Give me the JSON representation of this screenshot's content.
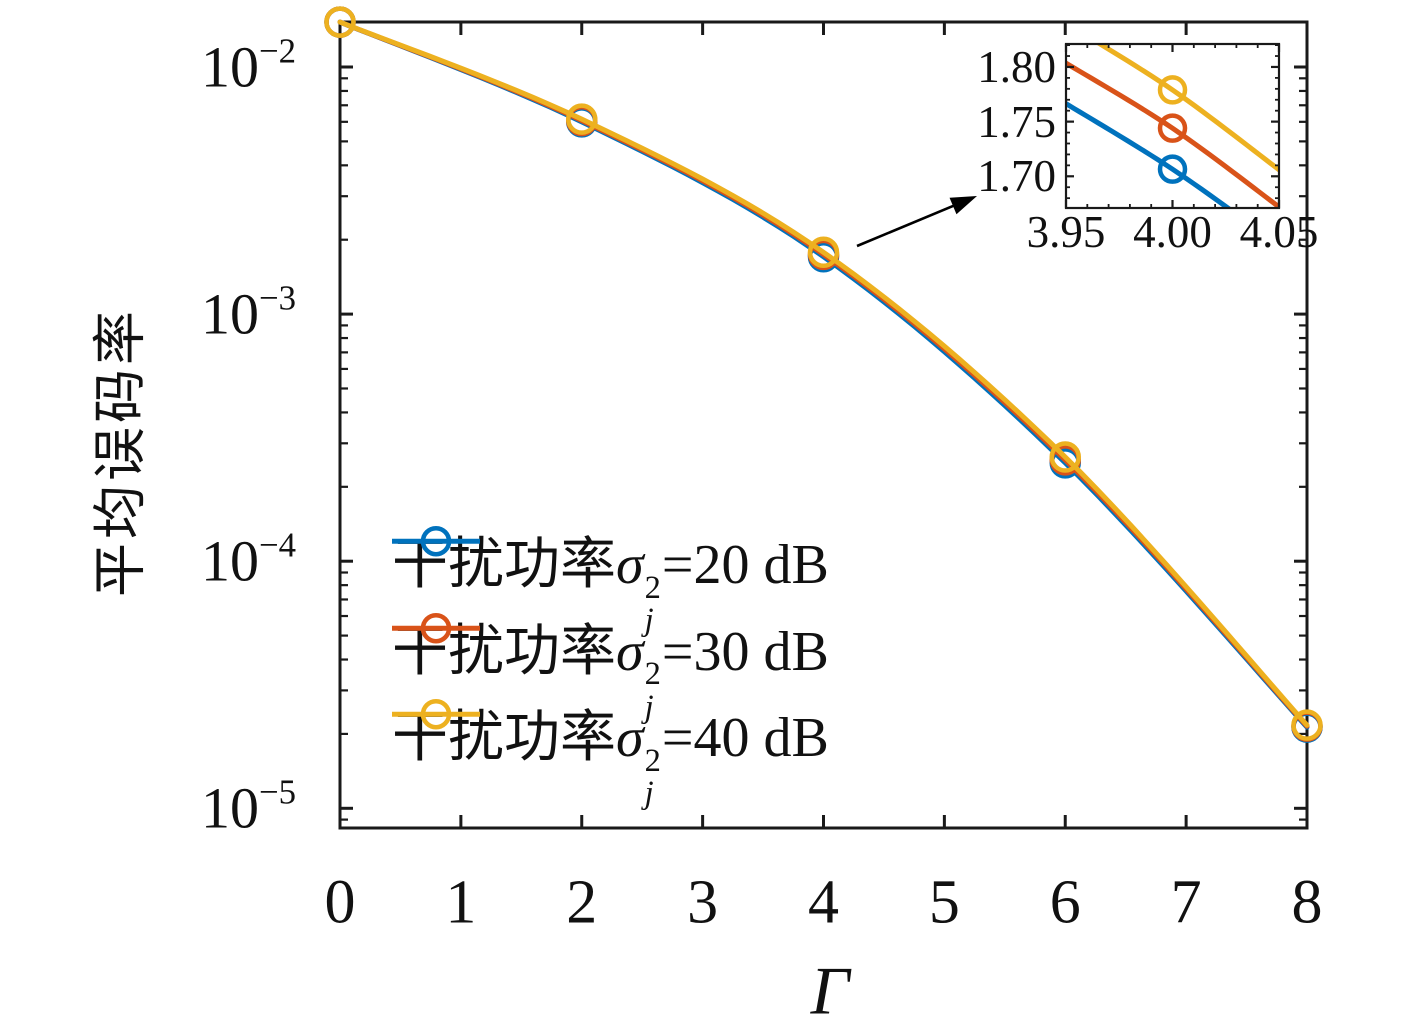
{
  "figure": {
    "background": "#ffffff",
    "axis_color": "#1a1a1a"
  },
  "chart_data": {
    "type": "line",
    "title": "",
    "xlabel": "Γ",
    "ylabel": "平均误码率",
    "xscale": "linear",
    "yscale": "log",
    "xlim": [
      0,
      8
    ],
    "ylim": [
      8.3e-06,
      0.0152
    ],
    "grid": false,
    "box": true,
    "xticks": [
      0,
      1,
      2,
      3,
      4,
      5,
      6,
      7,
      8
    ],
    "ytick_exponents": [
      -2,
      -3,
      -4,
      -5
    ],
    "x": [
      0,
      2,
      4,
      6,
      8
    ],
    "series": [
      {
        "name": "干扰功率σj2=20 dB",
        "color": "#0072BD",
        "values": [
          0.0152,
          0.006,
          0.001707,
          0.00025,
          2.13e-05
        ]
      },
      {
        "name": "干扰功率σj2=30 dB",
        "color": "#D95319",
        "values": [
          0.0152,
          0.00607,
          0.001744,
          0.000257,
          2.15e-05
        ]
      },
      {
        "name": "干扰功率σj2=40 dB",
        "color": "#EDB120",
        "values": [
          0.0152,
          0.00615,
          0.001779,
          0.000264,
          2.17e-05
        ]
      }
    ],
    "legend_position": "inside-lower-left",
    "legend": [
      {
        "prefix": "干扰功率",
        "sigma": "σ",
        "sup": "2",
        "sub": "j",
        "suffix": "=20 dB",
        "color": "#0072BD"
      },
      {
        "prefix": "干扰功率",
        "sigma": "σ",
        "sup": "2",
        "sub": "j",
        "suffix": "=30 dB",
        "color": "#D95319"
      },
      {
        "prefix": "干扰功率",
        "sigma": "σ",
        "sup": "2",
        "sub": "j",
        "suffix": "=40 dB",
        "color": "#EDB120"
      }
    ],
    "inset": {
      "description": "zoom of curves near x=4, values in units of 1e-3",
      "xlim": [
        3.95,
        4.05
      ],
      "ylim_x1e3": [
        1.671,
        1.821
      ],
      "xtick_labels": [
        "3.95",
        "4.00",
        "4.05"
      ],
      "yticks": [
        {
          "v": 1.8,
          "label": "1.80"
        },
        {
          "v": 1.75,
          "label": "1.75"
        },
        {
          "v": 1.7,
          "label": "1.70"
        }
      ],
      "series": [
        {
          "color": "#0072BD",
          "points_x1e3": [
            [
              3.95,
              1.7665
            ],
            [
              4.0,
              1.7065
            ],
            [
              4.05,
              1.637
            ]
          ],
          "marker_x": 4.0
        },
        {
          "color": "#D95319",
          "points_x1e3": [
            [
              3.95,
              1.8035
            ],
            [
              4.0,
              1.744
            ],
            [
              4.05,
              1.672
            ]
          ],
          "marker_x": 4.0
        },
        {
          "color": "#EDB120",
          "points_x1e3": [
            [
              3.95,
              1.84
            ],
            [
              4.0,
              1.779
            ],
            [
              4.05,
              1.706
            ]
          ],
          "marker_x": 4.0
        }
      ]
    }
  }
}
